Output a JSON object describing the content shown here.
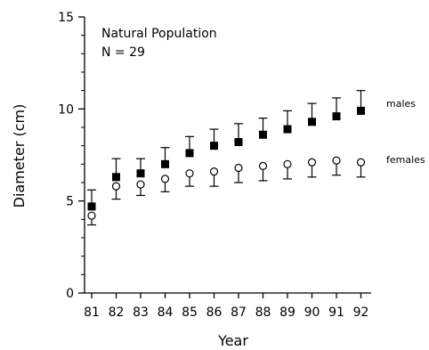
{
  "chart_data": {
    "type": "scatter",
    "annotations": [
      "Natural Population",
      "N = 29"
    ],
    "xlabel": "Year",
    "ylabel": "Diameter (cm)",
    "categories": [
      "81",
      "82",
      "83",
      "84",
      "85",
      "86",
      "87",
      "88",
      "89",
      "90",
      "91",
      "92"
    ],
    "ylim": [
      0,
      15
    ],
    "yticks": [
      "0",
      "5",
      "10",
      "15"
    ],
    "grid": false,
    "legend": "none",
    "series": [
      {
        "name": "males",
        "marker": "filled-square",
        "values": [
          4.7,
          6.3,
          6.5,
          7.0,
          7.6,
          8.0,
          8.2,
          8.6,
          8.9,
          9.3,
          9.6,
          9.9
        ],
        "error": [
          0.9,
          1.0,
          0.8,
          0.9,
          0.9,
          0.9,
          1.0,
          0.9,
          1.0,
          1.0,
          1.0,
          1.1
        ]
      },
      {
        "name": "females",
        "marker": "open-circle",
        "values": [
          4.2,
          5.8,
          5.9,
          6.2,
          6.5,
          6.6,
          6.8,
          6.9,
          7.0,
          7.1,
          7.2,
          7.1
        ],
        "error": [
          0.5,
          0.7,
          0.6,
          0.7,
          0.7,
          0.8,
          0.8,
          0.8,
          0.8,
          0.8,
          0.8,
          0.8
        ]
      }
    ]
  }
}
